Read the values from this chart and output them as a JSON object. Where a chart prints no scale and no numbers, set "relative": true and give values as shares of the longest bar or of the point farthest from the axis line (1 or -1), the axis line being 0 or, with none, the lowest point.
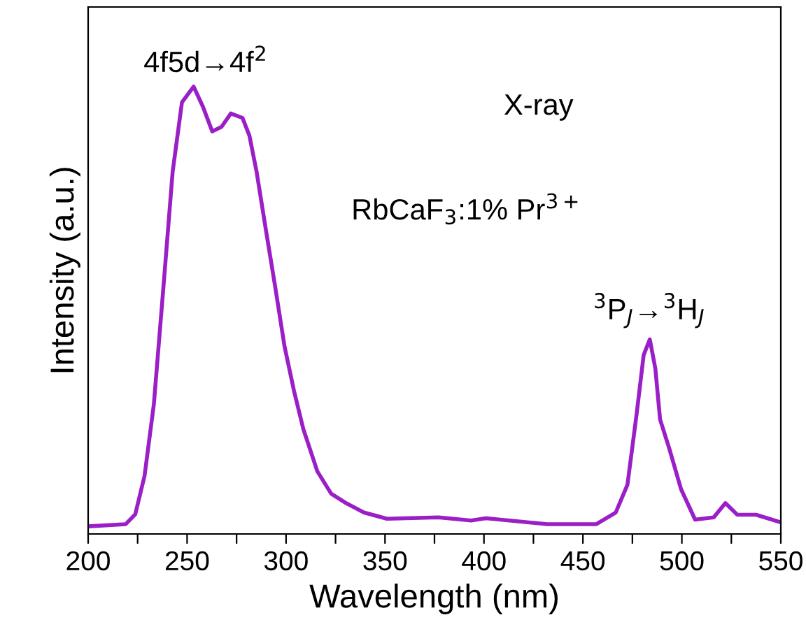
{
  "chart_data": {
    "type": "line",
    "relative": true,
    "xlabel": "Wavelength (nm)",
    "ylabel": "Intensity (a.u.)",
    "xlim": [
      200,
      550
    ],
    "xticks": [
      200,
      {
        "value": 225,
        "label": null
      },
      250,
      {
        "value": 275,
        "label": null
      },
      300,
      {
        "value": 325,
        "label": null
      },
      350,
      {
        "value": 375,
        "label": null
      },
      400,
      {
        "value": 425,
        "label": null
      },
      450,
      {
        "value": 475,
        "label": null
      },
      500,
      {
        "value": 525,
        "label": null
      },
      550
    ],
    "annotations": [
      "4f5d→4f$^{2}$",
      "X-ray",
      "RbCaF$_{3}$:1% Pr$^{3+}$",
      "$^{3}$P$_{J}$→$^{3}$H$_{J}$"
    ],
    "grid": false,
    "legend": false,
    "marker": "none",
    "line_style": "solid",
    "series": [
      {
        "color": "#9b1fc6",
        "x": [
          200,
          219,
          223.8,
          228.5,
          233.2,
          238,
          242.7,
          247.4,
          253.3,
          258,
          262.7,
          267.4,
          272.1,
          278,
          281.5,
          285.1,
          289.8,
          294.6,
          299.2,
          304,
          308.7,
          315.8,
          322.8,
          329.9,
          339.3,
          351,
          377,
          393.5,
          401,
          431.9,
          456.8,
          466.6,
          472.5,
          477.2,
          480.7,
          483.8,
          486.6,
          489,
          493.7,
          499.6,
          506.7,
          516.1,
          522,
          528,
          537.5,
          549.3
        ],
        "values": [
          0.017,
          0.022,
          0.044,
          0.13,
          0.29,
          0.55,
          0.81,
          0.965,
          1.0,
          0.955,
          0.9,
          0.91,
          0.94,
          0.93,
          0.89,
          0.81,
          0.68,
          0.55,
          0.42,
          0.32,
          0.235,
          0.14,
          0.09,
          0.07,
          0.048,
          0.034,
          0.037,
          0.03,
          0.035,
          0.022,
          0.022,
          0.048,
          0.11,
          0.27,
          0.4,
          0.435,
          0.37,
          0.256,
          0.19,
          0.1,
          0.032,
          0.037,
          0.069,
          0.043,
          0.043,
          0.027
        ]
      }
    ]
  }
}
